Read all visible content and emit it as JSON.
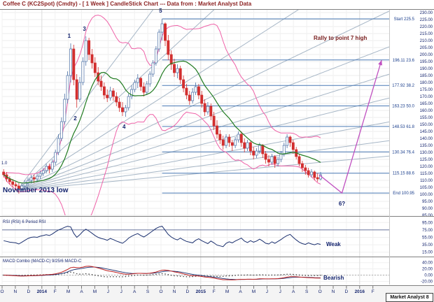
{
  "title": "Coffee C (KC2Spot) (Cmdty) - [ 1 Week ] CandleStick Chart --- Data from : Market Analyst Data",
  "branding": "Market Analyst 8",
  "price_panel": {
    "gann_label": "1.0"
  },
  "rsi_panel": {
    "label": "RSI (RSI) 6 Period RSI",
    "annotation": "Weak"
  },
  "macd_panel": {
    "label": "MACD Combo (MACD-C) 9/25/6 MACD-C",
    "annotation": "Bearish"
  },
  "annotations": {
    "low_note": "November 2013 low",
    "rally_note": "Rally to point 7 high"
  },
  "colors": {
    "up_candle": "#ffffff",
    "up_stroke": "#4a6fa5",
    "down_candle": "#d22f2f",
    "ma": "#1f7a1f",
    "band": "#ef62a8",
    "fib": "#4a7ab5",
    "fib_text": "#1a3e8c",
    "fan": "#a6b6c6",
    "projection": "#c050c0",
    "rsi_line": "#1a2f6e",
    "macd_line": "#c02020",
    "signal_line": "#1a2f6e",
    "text_navy": "#14246e",
    "title": "#8b1f1f"
  },
  "chart_data": {
    "type": "candlestick",
    "title": "Coffee C (KC2Spot) weekly with Gann fan, Bollinger bands, Fibonacci levels, RSI and MACD",
    "x_axis": {
      "labels": [
        "O",
        "N",
        "D",
        "2014",
        "F",
        "M",
        "A",
        "M",
        "J",
        "J",
        "A",
        "S",
        "O",
        "N",
        "D",
        "2015",
        "F",
        "M",
        "A",
        "M",
        "J",
        "J",
        "A",
        "S",
        "O",
        "N",
        "D",
        "2016",
        "F"
      ],
      "weeks_per_label": 4.345,
      "weeks_total": 127
    },
    "price_axis": {
      "min": 85,
      "max": 232,
      "tick_step": 5,
      "tick_min": 85,
      "tick_max": 230
    },
    "candles_ohlc": [
      [
        116,
        118,
        112,
        114
      ],
      [
        114,
        116,
        109,
        111
      ],
      [
        111,
        113,
        107,
        109
      ],
      [
        109,
        111,
        105,
        107
      ],
      [
        107,
        109,
        103,
        106
      ],
      [
        106,
        108,
        100.5,
        104
      ],
      [
        104,
        108,
        102,
        106
      ],
      [
        106,
        110,
        104,
        108
      ],
      [
        108,
        112,
        106,
        110
      ],
      [
        110,
        114,
        108,
        112
      ],
      [
        112,
        114,
        108,
        111
      ],
      [
        111,
        115,
        109,
        113
      ],
      [
        113,
        117,
        111,
        115
      ],
      [
        115,
        119,
        113,
        117
      ],
      [
        117,
        122,
        115,
        120
      ],
      [
        120,
        122,
        115,
        118
      ],
      [
        118,
        125,
        116,
        123
      ],
      [
        123,
        132,
        121,
        130
      ],
      [
        130,
        143,
        128,
        140
      ],
      [
        140,
        155,
        138,
        152
      ],
      [
        152,
        172,
        150,
        168
      ],
      [
        168,
        188,
        165,
        185
      ],
      [
        185,
        208,
        180,
        204
      ],
      [
        204,
        207,
        178,
        182
      ],
      [
        182,
        186,
        162,
        168
      ],
      [
        168,
        184,
        166,
        180
      ],
      [
        180,
        198,
        178,
        195
      ],
      [
        195,
        213,
        192,
        210
      ],
      [
        210,
        212,
        196,
        200
      ],
      [
        200,
        204,
        190,
        194
      ],
      [
        194,
        198,
        184,
        187
      ],
      [
        187,
        191,
        178,
        181
      ],
      [
        181,
        185,
        174,
        177
      ],
      [
        177,
        180,
        168,
        171
      ],
      [
        171,
        175,
        166,
        169
      ],
      [
        169,
        177,
        167,
        174
      ],
      [
        174,
        176,
        167,
        170
      ],
      [
        170,
        173,
        163,
        166
      ],
      [
        166,
        169,
        159,
        162
      ],
      [
        162,
        166,
        156,
        159
      ],
      [
        159,
        164,
        155.5,
        162
      ],
      [
        162,
        172,
        160,
        170
      ],
      [
        170,
        178,
        168,
        175
      ],
      [
        175,
        182,
        173,
        180
      ],
      [
        180,
        186,
        176,
        183
      ],
      [
        183,
        184,
        174,
        177
      ],
      [
        177,
        180,
        170,
        173
      ],
      [
        173,
        181,
        171,
        179
      ],
      [
        179,
        188,
        177,
        186
      ],
      [
        186,
        196,
        184,
        194
      ],
      [
        194,
        206,
        192,
        204
      ],
      [
        204,
        218,
        202,
        216
      ],
      [
        216,
        225.5,
        210,
        222
      ],
      [
        222,
        223,
        206,
        210
      ],
      [
        210,
        214,
        196,
        200
      ],
      [
        200,
        203,
        189,
        193
      ],
      [
        193,
        197,
        184,
        187
      ],
      [
        187,
        193,
        183,
        190
      ],
      [
        190,
        192,
        179,
        182
      ],
      [
        182,
        185,
        173,
        176
      ],
      [
        176,
        179,
        168,
        171
      ],
      [
        171,
        174,
        164,
        167
      ],
      [
        167,
        176,
        165,
        173
      ],
      [
        173,
        180,
        171,
        177
      ],
      [
        177,
        179,
        168,
        171
      ],
      [
        171,
        174,
        162,
        165
      ],
      [
        165,
        168,
        156,
        159
      ],
      [
        159,
        166,
        157,
        163
      ],
      [
        163,
        165,
        153,
        156
      ],
      [
        156,
        159,
        146,
        149
      ],
      [
        149,
        153,
        140,
        143
      ],
      [
        143,
        146,
        136,
        139
      ],
      [
        139,
        142,
        132,
        135
      ],
      [
        135,
        143,
        133,
        141
      ],
      [
        141,
        143,
        134,
        137
      ],
      [
        137,
        139,
        131,
        135
      ],
      [
        135,
        141,
        133,
        139
      ],
      [
        139,
        145,
        137,
        143
      ],
      [
        143,
        145,
        134,
        137
      ],
      [
        137,
        140,
        130,
        133
      ],
      [
        133,
        139,
        131,
        137
      ],
      [
        137,
        138,
        128,
        131
      ],
      [
        131,
        134,
        125,
        128
      ],
      [
        128,
        133,
        126,
        131
      ],
      [
        131,
        137,
        129,
        135
      ],
      [
        135,
        136,
        126,
        129
      ],
      [
        129,
        131,
        122,
        125
      ],
      [
        125,
        128,
        120,
        123
      ],
      [
        123,
        129,
        121,
        127
      ],
      [
        127,
        128,
        119,
        122
      ],
      [
        122,
        127,
        120,
        125
      ],
      [
        125,
        131,
        123,
        129
      ],
      [
        129,
        137,
        127,
        135
      ],
      [
        135,
        143,
        133,
        141
      ],
      [
        141,
        142,
        134,
        137
      ],
      [
        137,
        139,
        129,
        132
      ],
      [
        132,
        134,
        125,
        127
      ],
      [
        127,
        129,
        120,
        122
      ],
      [
        122,
        124,
        116,
        119
      ],
      [
        119,
        121,
        114,
        117
      ],
      [
        117,
        119,
        112,
        114
      ],
      [
        114,
        118,
        112,
        116
      ],
      [
        116,
        117,
        110,
        112
      ],
      [
        112,
        115,
        109,
        111
      ],
      [
        111,
        116,
        110,
        114
      ]
    ],
    "sma_period": 13,
    "bollinger": {
      "period": 20,
      "stdev": 2
    },
    "rsi": {
      "values": [
        46,
        44,
        42,
        41,
        40,
        37,
        42,
        47,
        52,
        55,
        56,
        55,
        58,
        60,
        62,
        60,
        64,
        70,
        75,
        78,
        82,
        85,
        83,
        66,
        55,
        62,
        71,
        77,
        72,
        66,
        60,
        55,
        52,
        50,
        47,
        52,
        49,
        45,
        42,
        39,
        45,
        53,
        58,
        62,
        65,
        60,
        56,
        61,
        67,
        73,
        79,
        83,
        85,
        74,
        63,
        56,
        51,
        48,
        53,
        48,
        44,
        42,
        40,
        47,
        51,
        46,
        42,
        38,
        45,
        40,
        34,
        32,
        30,
        39,
        43,
        40,
        45,
        49,
        53,
        45,
        41,
        46,
        42,
        45,
        50,
        45,
        39,
        37,
        43,
        39,
        44,
        49,
        55,
        60,
        63,
        55,
        48,
        42,
        38,
        36,
        40,
        37,
        35,
        38,
        36
      ],
      "axis_ticks": [
        95,
        75,
        55,
        35,
        15
      ],
      "range": [
        5,
        105
      ],
      "hline": 75
    },
    "macd": {
      "fast": 9,
      "slow": 25,
      "signal": 6,
      "axis_ticks": [
        40,
        20,
        0,
        -20
      ],
      "range": [
        -30,
        55
      ]
    },
    "fib_levels": [
      {
        "price": 225.5,
        "label": "Start 225.5"
      },
      {
        "price": 196.11,
        "label": "196.11 23.6"
      },
      {
        "price": 177.92,
        "label": "177.92 38.2"
      },
      {
        "price": 163.23,
        "label": "163.23 50.0"
      },
      {
        "price": 148.53,
        "label": "148.53 61.8"
      },
      {
        "price": 130.34,
        "label": "130.34 76.4"
      },
      {
        "price": 115.15,
        "label": "115.15 88.6"
      },
      {
        "price": 100.95,
        "label": "End 100.95"
      }
    ],
    "fib_start_week": 52.5,
    "gann_fan": {
      "origin_week": 5,
      "origin_price": 103,
      "slopes": [
        2.9,
        2.0,
        1.4,
        1.05,
        0.84,
        0.68,
        0.54,
        0.4,
        0.29,
        0.2
      ]
    },
    "projection": {
      "points": [
        [
          104,
          114
        ],
        [
          111.5,
          100.95
        ],
        [
          124.5,
          196
        ]
      ]
    },
    "wave_points": [
      {
        "label": "1",
        "week": 22,
        "price": 213
      },
      {
        "label": "2",
        "week": 24,
        "price": 154
      },
      {
        "label": "3",
        "week": 27,
        "price": 218
      },
      {
        "label": "4",
        "week": 40,
        "price": 148
      },
      {
        "label": "5",
        "week": 52,
        "price": 231
      },
      {
        "label": "6?",
        "week": 111.5,
        "price": 93
      }
    ]
  }
}
